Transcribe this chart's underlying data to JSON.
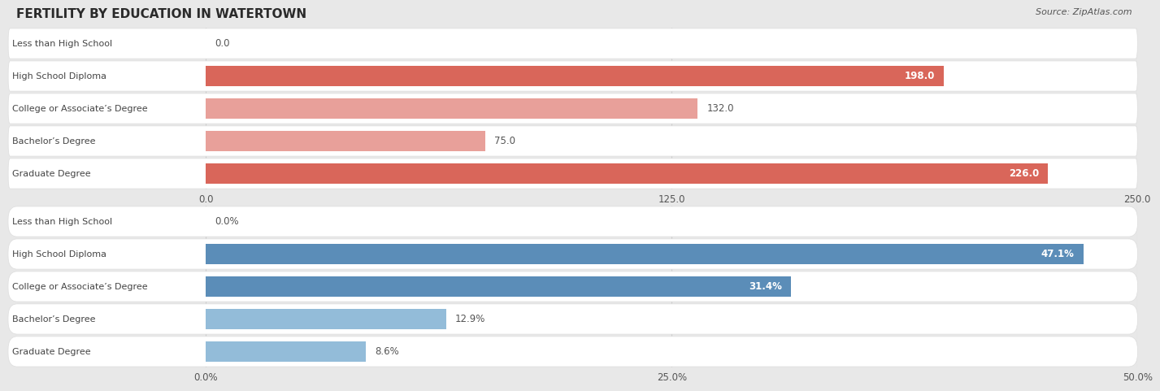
{
  "title": "FERTILITY BY EDUCATION IN WATERTOWN",
  "source": "Source: ZipAtlas.com",
  "top_chart": {
    "categories": [
      "Less than High School",
      "High School Diploma",
      "College or Associate’s Degree",
      "Bachelor’s Degree",
      "Graduate Degree"
    ],
    "values": [
      0.0,
      198.0,
      132.0,
      75.0,
      226.0
    ],
    "xlim": [
      0,
      250
    ],
    "xticks": [
      0.0,
      125.0,
      250.0
    ],
    "xtick_labels": [
      "0.0",
      "125.0",
      "250.0"
    ],
    "bar_color_strong": "#d9665a",
    "bar_color_light": "#e8a09a",
    "strong_indices": [
      1,
      4
    ],
    "label_inside_indices": [
      1,
      4
    ],
    "label_outside_indices": [
      0,
      2,
      3
    ],
    "value_labels": [
      "0.0",
      "198.0",
      "132.0",
      "75.0",
      "226.0"
    ]
  },
  "bottom_chart": {
    "categories": [
      "Less than High School",
      "High School Diploma",
      "College or Associate’s Degree",
      "Bachelor’s Degree",
      "Graduate Degree"
    ],
    "values": [
      0.0,
      47.1,
      31.4,
      12.9,
      8.6
    ],
    "xlim": [
      0,
      50
    ],
    "xticks": [
      0.0,
      25.0,
      50.0
    ],
    "xtick_labels": [
      "0.0%",
      "25.0%",
      "50.0%"
    ],
    "bar_color_strong": "#5b8db8",
    "bar_color_light": "#93bcd9",
    "strong_indices": [
      1,
      2
    ],
    "label_inside_indices": [
      1,
      2
    ],
    "label_outside_indices": [
      0,
      3,
      4
    ],
    "value_labels": [
      "0.0%",
      "47.1%",
      "31.4%",
      "12.9%",
      "8.6%"
    ]
  },
  "bg_color": "#e8e8e8",
  "row_bg_color": "#f5f5f5",
  "bar_height": 0.62,
  "label_fontsize": 8.5,
  "tick_fontsize": 8.5,
  "title_fontsize": 11,
  "cat_label_fontsize": 8.0,
  "cat_label_color": "#444444",
  "value_label_color_inside": "#ffffff",
  "value_label_color_outside": "#555555"
}
